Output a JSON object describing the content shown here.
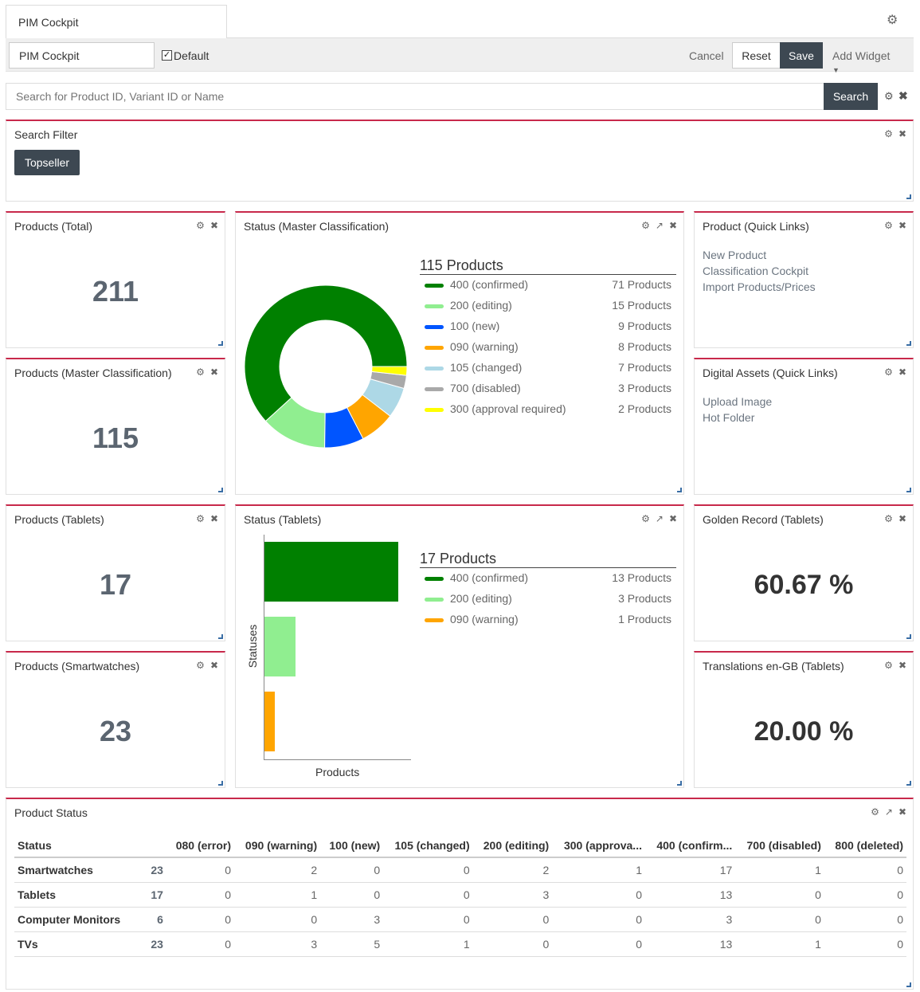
{
  "tab": {
    "title": "PIM Cockpit"
  },
  "toolbar": {
    "name_value": "PIM Cockpit",
    "default_label": "Default",
    "cancel": "Cancel",
    "reset": "Reset",
    "save": "Save",
    "add_widget": "Add Widget"
  },
  "search": {
    "placeholder": "Search for Product ID, Variant ID or Name",
    "button": "Search"
  },
  "search_filter": {
    "title": "Search Filter",
    "chip": "Topseller"
  },
  "products_total": {
    "title": "Products (Total)",
    "value": "211"
  },
  "products_master": {
    "title": "Products (Master Classification)",
    "value": "115"
  },
  "products_tablets": {
    "title": "Products (Tablets)",
    "value": "17"
  },
  "products_smartwatches": {
    "title": "Products (Smartwatches)",
    "value": "23"
  },
  "quick_links": {
    "title": "Product (Quick Links)",
    "items": [
      "New Product",
      "Classification Cockpit",
      "Import Products/Prices"
    ]
  },
  "asset_links": {
    "title": "Digital Assets (Quick Links)",
    "items": [
      "Upload Image",
      "Hot Folder"
    ]
  },
  "golden_record": {
    "title": "Golden Record (Tablets)",
    "value": "60.67 %"
  },
  "translations": {
    "title": "Translations en-GB (Tablets)",
    "value": "20.00 %"
  },
  "status_master": {
    "title": "Status (Master Classification)",
    "legend_title": "115 Products",
    "items": [
      {
        "label": "400 (confirmed)",
        "count": "71 Products",
        "value": 71,
        "color": "#008000"
      },
      {
        "label": "200 (editing)",
        "count": "15 Products",
        "value": 15,
        "color": "#90ee90"
      },
      {
        "label": "100 (new)",
        "count": "9 Products",
        "value": 9,
        "color": "#0055ff"
      },
      {
        "label": "090 (warning)",
        "count": "8 Products",
        "value": 8,
        "color": "#ffa500"
      },
      {
        "label": "105 (changed)",
        "count": "7 Products",
        "value": 7,
        "color": "#add8e6"
      },
      {
        "label": "700 (disabled)",
        "count": "3 Products",
        "value": 3,
        "color": "#a9a9a9"
      },
      {
        "label": "300 (approval required)",
        "count": "2 Products",
        "value": 2,
        "color": "#ffff00"
      }
    ]
  },
  "status_tablets": {
    "title": "Status (Tablets)",
    "legend_title": "17 Products",
    "ylabel": "Statuses",
    "xlabel": "Products",
    "items": [
      {
        "label": "400 (confirmed)",
        "count": "13 Products",
        "value": 13,
        "color": "#008000"
      },
      {
        "label": "200 (editing)",
        "count": "3 Products",
        "value": 3,
        "color": "#90ee90"
      },
      {
        "label": "090 (warning)",
        "count": "1 Products",
        "value": 1,
        "color": "#ffa500"
      }
    ]
  },
  "chart_data": [
    {
      "type": "pie",
      "title": "Status (Master Classification)",
      "categories": [
        "400 (confirmed)",
        "200 (editing)",
        "100 (new)",
        "090 (warning)",
        "105 (changed)",
        "700 (disabled)",
        "300 (approval required)"
      ],
      "values": [
        71,
        15,
        9,
        8,
        7,
        3,
        2
      ]
    },
    {
      "type": "bar",
      "title": "Status (Tablets)",
      "categories": [
        "400 (confirmed)",
        "200 (editing)",
        "090 (warning)"
      ],
      "values": [
        13,
        3,
        1
      ],
      "xlabel": "Products",
      "ylabel": "Statuses"
    }
  ],
  "product_status": {
    "title": "Product Status",
    "headers": [
      "Status",
      "",
      "080 (error)",
      "090 (warning)",
      "100 (new)",
      "105 (changed)",
      "200 (editing)",
      "300 (approva...",
      "400 (confirm...",
      "700 (disabled)",
      "800 (deleted)"
    ],
    "rows": [
      {
        "name": "Smartwatches",
        "cells": [
          "23",
          "0",
          "2",
          "0",
          "0",
          "2",
          "1",
          "17",
          "1",
          "0"
        ]
      },
      {
        "name": "Tablets",
        "cells": [
          "17",
          "0",
          "1",
          "0",
          "0",
          "3",
          "0",
          "13",
          "0",
          "0"
        ]
      },
      {
        "name": "Computer Monitors",
        "cells": [
          "6",
          "0",
          "0",
          "3",
          "0",
          "0",
          "0",
          "3",
          "0",
          "0"
        ]
      },
      {
        "name": "TVs",
        "cells": [
          "23",
          "0",
          "3",
          "5",
          "1",
          "0",
          "0",
          "13",
          "1",
          "0"
        ]
      }
    ]
  }
}
